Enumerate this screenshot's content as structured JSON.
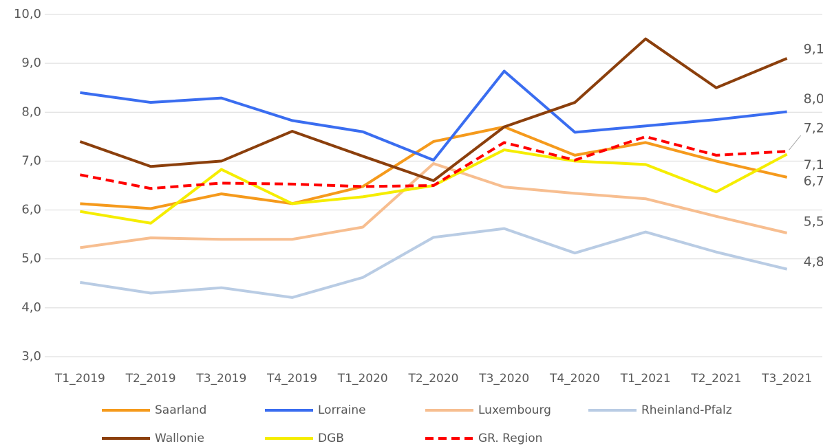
{
  "chart_data": {
    "type": "line",
    "categories": [
      "T1_2019",
      "T2_2019",
      "T3_2019",
      "T4_2019",
      "T1_2020",
      "T2_2020",
      "T3_2020",
      "T4_2020",
      "T1_2021",
      "T2_2021",
      "T3_2021"
    ],
    "ylim": [
      3,
      10
    ],
    "yticks": [
      {
        "value": 3,
        "label": "3,0"
      },
      {
        "value": 4,
        "label": "4,0"
      },
      {
        "value": 5,
        "label": "5,0"
      },
      {
        "value": 6,
        "label": "6,0"
      },
      {
        "value": 7,
        "label": "7,0"
      },
      {
        "value": 8,
        "label": "8,0"
      },
      {
        "value": 9,
        "label": "9,0"
      },
      {
        "value": 10,
        "label": "10,0"
      }
    ],
    "grid": true,
    "legend": "bottom",
    "series": [
      {
        "name": "Saarland",
        "color": "#f59a1c",
        "values": [
          6.13,
          6.03,
          6.33,
          6.13,
          6.48,
          7.4,
          7.7,
          7.12,
          7.38,
          7.0,
          6.67
        ],
        "value_labels": [
          null,
          null,
          null,
          null,
          null,
          null,
          null,
          null,
          null,
          null,
          "6,7"
        ]
      },
      {
        "name": "Lorraine",
        "color": "#3a6df0",
        "values": [
          8.4,
          8.2,
          8.29,
          7.83,
          7.6,
          7.02,
          8.84,
          7.59,
          7.72,
          7.85,
          8.01
        ],
        "value_labels": [
          null,
          null,
          null,
          null,
          null,
          null,
          null,
          null,
          null,
          null,
          "8,0"
        ]
      },
      {
        "name": "Luxembourg",
        "color": "#f7be90",
        "values": [
          5.23,
          5.43,
          5.4,
          5.4,
          5.65,
          6.95,
          6.47,
          6.34,
          6.23,
          5.87,
          5.53
        ],
        "value_labels": [
          null,
          null,
          null,
          null,
          null,
          null,
          null,
          null,
          null,
          null,
          "5,5"
        ]
      },
      {
        "name": "Rheinland-Pfalz",
        "color": "#b9cce4",
        "values": [
          4.52,
          4.3,
          4.41,
          4.21,
          4.62,
          5.44,
          5.62,
          5.12,
          5.55,
          5.14,
          4.79
        ],
        "value_labels": [
          null,
          null,
          null,
          null,
          null,
          null,
          null,
          null,
          null,
          null,
          "4,8"
        ]
      },
      {
        "name": "Wallonie",
        "color": "#8b3f0c",
        "values": [
          7.4,
          6.89,
          7.0,
          7.61,
          7.1,
          6.6,
          7.7,
          8.2,
          9.5,
          8.5,
          9.1
        ],
        "value_labels": [
          null,
          null,
          null,
          null,
          null,
          null,
          null,
          null,
          null,
          null,
          "9,1"
        ]
      },
      {
        "name": "DGB",
        "color": "#f5ed00",
        "values": [
          5.97,
          5.73,
          6.83,
          6.13,
          6.27,
          6.5,
          7.23,
          7.0,
          6.93,
          6.37,
          7.14
        ],
        "value_labels": [
          null,
          null,
          null,
          null,
          null,
          null,
          null,
          null,
          null,
          null,
          "7,1"
        ]
      },
      {
        "name": "GR. Region",
        "color": "#ff0000",
        "dashed": true,
        "values": [
          6.72,
          6.44,
          6.55,
          6.53,
          6.48,
          6.5,
          7.38,
          7.02,
          7.5,
          7.12,
          7.2
        ],
        "value_labels": [
          null,
          null,
          null,
          null,
          null,
          null,
          null,
          null,
          null,
          null,
          "7,2"
        ]
      }
    ]
  }
}
